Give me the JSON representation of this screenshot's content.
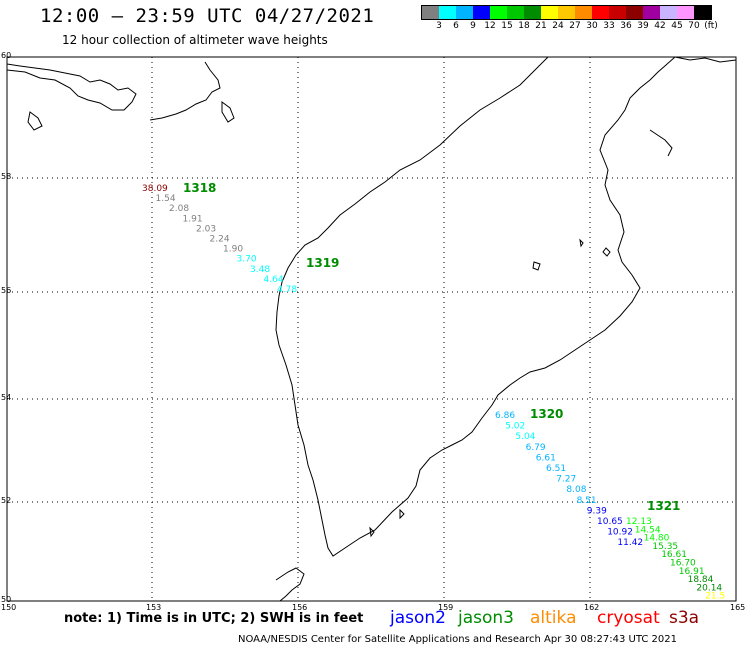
{
  "title": "12:00 — 23:59 UTC 04/27/2021",
  "subtitle": "12 hour collection of altimeter wave heights",
  "colorbar": {
    "unit": "(ft)",
    "colors": [
      "#808080",
      "#00ffff",
      "#00b4ff",
      "#0000ff",
      "#00ff00",
      "#00c800",
      "#008c00",
      "#ffff00",
      "#ffc800",
      "#ff8c00",
      "#ff0000",
      "#c80000",
      "#8c0000",
      "#a000a0",
      "#c8b4ff",
      "#ff96ff",
      "#000000"
    ],
    "ticks": [
      "3",
      "6",
      "9",
      "12",
      "15",
      "18",
      "21",
      "24",
      "27",
      "30",
      "33",
      "36",
      "39",
      "42",
      "45",
      "70"
    ]
  },
  "axes": {
    "lon_labels": [
      "150",
      "153",
      "156",
      "159",
      "162",
      "165"
    ],
    "lat_labels": [
      "60",
      "58",
      "56",
      "54",
      "52",
      "50"
    ],
    "lon_range": [
      150,
      165
    ],
    "lat_range": [
      50,
      60
    ]
  },
  "tracks": [
    {
      "id": "1318",
      "label_color": "#008c00",
      "points": [
        {
          "v": "38.09",
          "c": "#8c0000"
        },
        {
          "v": "1.54",
          "c": "#808080"
        },
        {
          "v": "2.08",
          "c": "#808080"
        },
        {
          "v": "1.91",
          "c": "#808080"
        },
        {
          "v": "2.03",
          "c": "#808080"
        },
        {
          "v": "2.24",
          "c": "#808080"
        },
        {
          "v": "1.90",
          "c": "#808080"
        },
        {
          "v": "3.70",
          "c": "#00ffff"
        },
        {
          "v": "3.48",
          "c": "#00ffff"
        },
        {
          "v": "4.64",
          "c": "#00ffff"
        },
        {
          "v": "4.78",
          "c": "#00ffff"
        }
      ]
    },
    {
      "id": "1319",
      "label_color": "#008c00",
      "points": []
    },
    {
      "id": "1320",
      "label_color": "#008c00",
      "points": [
        {
          "v": "6.86",
          "c": "#00b4ff"
        },
        {
          "v": "5.02",
          "c": "#00ffff"
        },
        {
          "v": "5.04",
          "c": "#00ffff"
        },
        {
          "v": "6.79",
          "c": "#00b4ff"
        },
        {
          "v": "6.61",
          "c": "#00b4ff"
        },
        {
          "v": "6.51",
          "c": "#00b4ff"
        },
        {
          "v": "7.27",
          "c": "#00b4ff"
        },
        {
          "v": "8.08",
          "c": "#00b4ff"
        },
        {
          "v": "8.51",
          "c": "#00b4ff"
        },
        {
          "v": "9.39",
          "c": "#0000ff"
        },
        {
          "v": "10.65",
          "c": "#0000ff"
        },
        {
          "v": "10.92",
          "c": "#0000ff"
        },
        {
          "v": "11.42",
          "c": "#0000ff"
        }
      ]
    },
    {
      "id": "1321",
      "label_color": "#008c00",
      "points": [
        {
          "v": "12.13",
          "c": "#00ff00"
        },
        {
          "v": "14.54",
          "c": "#00ff00"
        },
        {
          "v": "14.80",
          "c": "#00ff00"
        },
        {
          "v": "15.35",
          "c": "#00c800"
        },
        {
          "v": "16.61",
          "c": "#00c800"
        },
        {
          "v": "16.70",
          "c": "#00c800"
        },
        {
          "v": "16.91",
          "c": "#00c800"
        },
        {
          "v": "18.84",
          "c": "#008c00"
        },
        {
          "v": "20.14",
          "c": "#008c00"
        },
        {
          "v": "21.5",
          "c": "#ffff00"
        }
      ]
    }
  ],
  "note": "note: 1) Time is in UTC; 2) SWH is in feet",
  "legend": [
    {
      "name": "jason2",
      "color": "#0000ff"
    },
    {
      "name": "jason3",
      "color": "#008c00"
    },
    {
      "name": "altika",
      "color": "#ff8c00"
    },
    {
      "name": "cryosat",
      "color": "#ff0000"
    },
    {
      "name": "s3a",
      "color": "#8c0000"
    }
  ],
  "credit": "NOAA/NESDIS Center for Satellite Applications and Research   Apr 30 08:27:43 UTC 2021"
}
